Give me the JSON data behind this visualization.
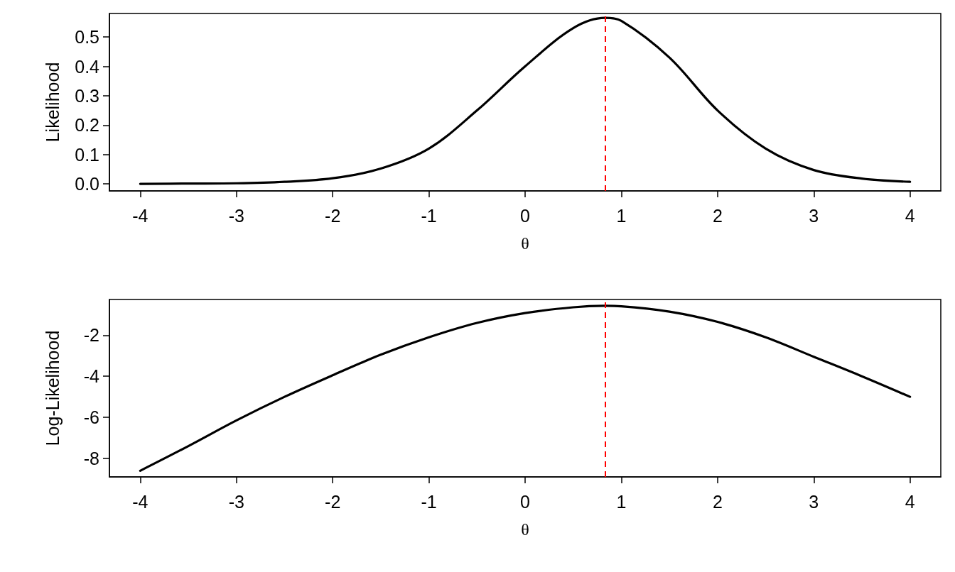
{
  "chart_data": [
    {
      "type": "line",
      "xlabel": "θ",
      "ylabel": "Likelihood",
      "x": [
        -4,
        -3.5,
        -3,
        -2.5,
        -2,
        -1.5,
        -1,
        -0.5,
        0,
        0.5,
        0.83,
        1,
        1.5,
        2,
        2.5,
        3,
        3.5,
        4
      ],
      "series": [
        {
          "color": "#000000",
          "values": [
            0.0,
            0.001,
            0.002,
            0.007,
            0.019,
            0.052,
            0.12,
            0.25,
            0.4,
            0.53,
            0.565,
            0.555,
            0.43,
            0.25,
            0.12,
            0.047,
            0.018,
            0.007
          ]
        }
      ],
      "xlim": [
        -4.32,
        4.32
      ],
      "xticks": [
        -4,
        -3,
        -2,
        -1,
        0,
        1,
        2,
        3,
        4
      ],
      "ylim": [
        -0.024,
        0.58
      ],
      "yticks": [
        {
          "value": 0,
          "label": "0.0"
        },
        {
          "value": 0.1,
          "label": "0.1"
        },
        {
          "value": 0.2,
          "label": "0.2"
        },
        {
          "value": 0.3,
          "label": "0.3"
        },
        {
          "value": 0.4,
          "label": "0.4"
        },
        {
          "value": 0.5,
          "label": "0.5"
        }
      ],
      "ref_lines": [
        {
          "axis": "x",
          "value": 0.83,
          "color": "#ff0000",
          "line_style": "dashed"
        }
      ],
      "grid": false,
      "marker": "none",
      "line_style": "solid"
    },
    {
      "type": "line",
      "xlabel": "θ",
      "ylabel": "Log-Likelihood",
      "x": [
        -4,
        -3.5,
        -3,
        -2.5,
        -2,
        -1.5,
        -1,
        -0.5,
        0,
        0.5,
        0.83,
        1,
        1.5,
        2,
        2.5,
        3,
        3.5,
        4
      ],
      "series": [
        {
          "color": "#000000",
          "values": [
            -8.6,
            -7.4,
            -6.15,
            -5.0,
            -3.95,
            -2.95,
            -2.1,
            -1.4,
            -0.92,
            -0.64,
            -0.57,
            -0.59,
            -0.85,
            -1.35,
            -2.1,
            -3.05,
            -4.0,
            -5.0
          ]
        }
      ],
      "xlim": [
        -4.32,
        4.32
      ],
      "xticks": [
        -4,
        -3,
        -2,
        -1,
        0,
        1,
        2,
        3,
        4
      ],
      "ylim": [
        -8.9,
        -0.26
      ],
      "yticks": [
        -8,
        -6,
        -4,
        -2
      ],
      "ref_lines": [
        {
          "axis": "x",
          "value": 0.83,
          "color": "#ff0000",
          "line_style": "dashed"
        }
      ],
      "grid": false,
      "marker": "none",
      "line_style": "solid"
    }
  ]
}
